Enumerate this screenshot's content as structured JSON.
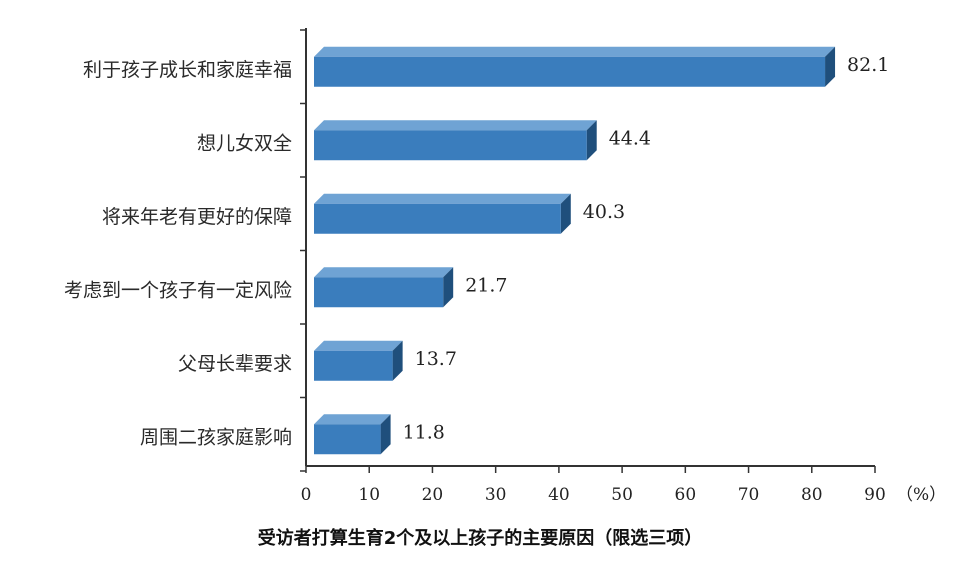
{
  "chart_data": {
    "type": "bar",
    "orientation": "horizontal",
    "title": "受访者打算生育2个及以上孩子的主要原因（限选三项）",
    "categories": [
      "利于孩子成长和家庭幸福",
      "想儿女双全",
      "将来年老有更好的保障",
      "考虑到一个孩子有一定风险",
      "父母长辈要求",
      "周围二孩家庭影响"
    ],
    "values": [
      82.1,
      44.4,
      40.3,
      21.7,
      13.7,
      11.8
    ],
    "value_labels": [
      "82.1",
      "44.4",
      "40.3",
      "21.7",
      "13.7",
      "11.8"
    ],
    "x_ticks": [
      "0",
      "10",
      "20",
      "30",
      "40",
      "50",
      "60",
      "70",
      "80",
      "90"
    ],
    "xlim": [
      0,
      90
    ],
    "unit": "（%）",
    "grid": false,
    "colors": {
      "bar_front": "#3a7dbd",
      "bar_top": "#6fa3d4",
      "bar_side": "#1f4f7c",
      "axis": "#333333"
    }
  }
}
